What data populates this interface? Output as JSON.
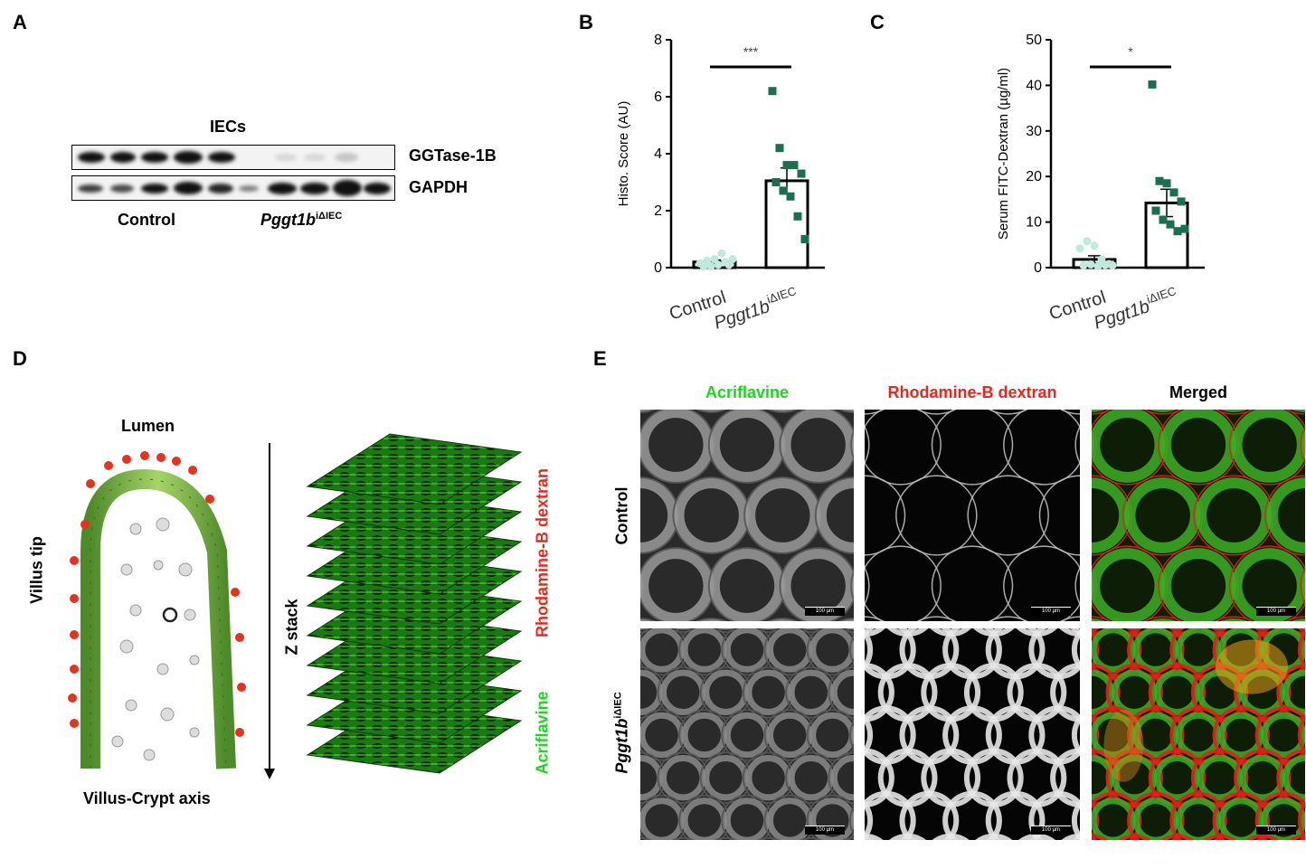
{
  "panels": {
    "A": "A",
    "B": "B",
    "C": "C",
    "D": "D",
    "E": "E"
  },
  "panel_a": {
    "sample_label": "IECs",
    "blot1_label": "GGTase-1B",
    "blot2_label": "GAPDH",
    "group1": "Control",
    "group2_main": "Pggt1b",
    "group2_sup": "iΔIEC"
  },
  "panel_d": {
    "top_label": "Lumen",
    "side_label": "Villus tip",
    "bottom_label": "Villus-Crypt axis",
    "arrow_label": "Z stack",
    "red_label": "Rhodamine-B dextran",
    "green_label": "Acriflavine"
  },
  "panel_e": {
    "col1": "Acriflavine",
    "col2": "Rhodamine-B dextran",
    "col3": "Merged",
    "row1": "Control",
    "row2_main": "Pggt1b",
    "row2_sup": "iΔIEC",
    "scale": "100 μm"
  },
  "chart_data": [
    {
      "type": "bar",
      "panel": "B",
      "categories": [
        "Control",
        "Pggt1b iΔIEC"
      ],
      "category_main": [
        "Control",
        "Pggt1b"
      ],
      "category_sup": [
        "",
        "iΔIEC"
      ],
      "values": [
        0.2,
        3.05
      ],
      "errors": [
        0.07,
        0.45
      ],
      "points": [
        [
          0.15,
          0.25,
          0.3,
          0.5,
          0.1,
          0.05,
          0.05,
          0.1,
          0.2,
          0.3
        ],
        [
          6.2,
          4.2,
          3.6,
          3.6,
          3.3,
          3.0,
          2.7,
          2.5,
          1.8,
          1.0
        ]
      ],
      "ylabel": "Histo. Score (AU)",
      "ylim": [
        0,
        8
      ],
      "yticks": [
        0,
        2,
        4,
        6,
        8
      ],
      "significance": "***",
      "colors": [
        "#bfe9dd",
        "#1b6e4e"
      ]
    },
    {
      "type": "bar",
      "panel": "C",
      "categories": [
        "Control",
        "Pggt1b iΔIEC"
      ],
      "category_main": [
        "Control",
        "Pggt1b"
      ],
      "category_sup": [
        "",
        "iΔIEC"
      ],
      "values": [
        1.8,
        14.2
      ],
      "errors": [
        0.8,
        3.0
      ],
      "points": [
        [
          4.2,
          5.8,
          4.8,
          1.8,
          0.8,
          0.5,
          0.7,
          0.3,
          0.6,
          0.5
        ],
        [
          40.2,
          19.0,
          18.5,
          16.5,
          14.5,
          12.5,
          10.5,
          9.5,
          8.0,
          8.5
        ]
      ],
      "ylabel": "Serum FITC-Dextran (µg/ml)",
      "ylim": [
        0,
        50
      ],
      "yticks": [
        0,
        10,
        20,
        30,
        40,
        50
      ],
      "significance": "*",
      "colors": [
        "#bfe9dd",
        "#1b6e4e"
      ]
    }
  ]
}
